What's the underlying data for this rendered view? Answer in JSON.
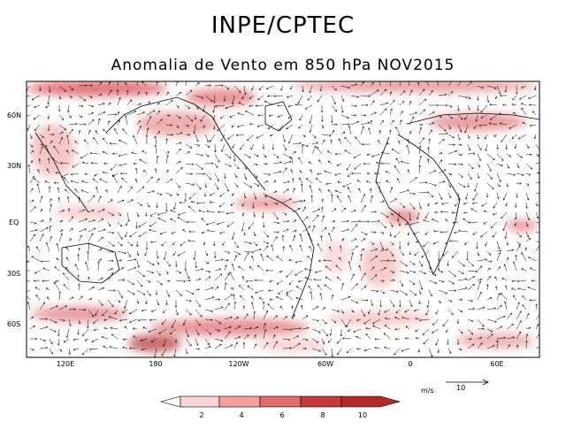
{
  "header": {
    "title": "INPE/CPTEC",
    "subtitle": "Anomalia de Vento em 850 hPa NOV2015"
  },
  "map": {
    "type": "wind-vector-anomaly-map",
    "level": "850 hPa",
    "lat_ticks": [
      "60N",
      "30N",
      "EQ",
      "30S",
      "60S"
    ],
    "lon_ticks": [
      "120E",
      "180",
      "120W",
      "60W",
      "0",
      "60E"
    ],
    "shading_color": "#d94b52",
    "vector_color": "#000000"
  },
  "reference_vector": {
    "unit": "m/s",
    "value": "10"
  },
  "colorbar": {
    "ticks": [
      "2",
      "4",
      "6",
      "8",
      "10"
    ],
    "colors": [
      "#ffffff",
      "#fbd5d5",
      "#f2a0a0",
      "#e06c6c",
      "#c43b3b",
      "#b32a2a"
    ]
  }
}
